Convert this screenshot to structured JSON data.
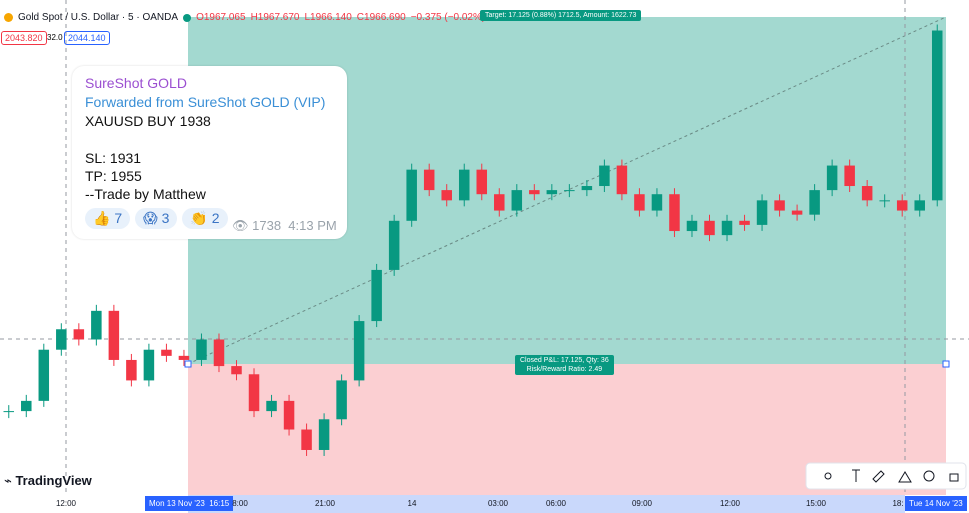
{
  "header": {
    "symbol": "Gold Spot / U.S. Dollar · 5 · OANDA",
    "open": "O1967.065",
    "high": "H1967.670",
    "low": "L1966.140",
    "close": "C1966.690",
    "change": "−0.375 (−0.02%)"
  },
  "quote": {
    "sell": "2043.820",
    "spread": "32.0",
    "buy": "2044.140"
  },
  "target_label": "Target: 17.125 (0.88%) 1712.5, Amount: 1622.73",
  "position_label": {
    "pnl": "Closed P&L: 17.125, Qty: 36",
    "ratio": "Risk/Reward Ratio: 2.49"
  },
  "message": {
    "channel": "SureShot GOLD",
    "forwarded": "Forwarded from SureShot GOLD (VIP)",
    "lines": [
      "XAUUSD BUY 1938",
      "SL: 1931",
      "TP: 1955",
      "--Trade by Matthew"
    ],
    "reactions": [
      {
        "emoji": "👍",
        "count": "7"
      },
      {
        "emoji": "😱",
        "count": "3"
      },
      {
        "emoji": "👏",
        "count": "2"
      }
    ],
    "views": "1738",
    "time": "4:13 PM"
  },
  "brand": "TradingView",
  "time_axis": [
    "12:00",
    "8:00",
    "21:00",
    "14",
    "03:00",
    "06:00",
    "09:00",
    "12:00",
    "15:00",
    "18:"
  ],
  "time_highlight": {
    "date_start": "Mon 13 Nov '23",
    "time_start": "16:15",
    "date_end": "Tue 14 Nov '23"
  },
  "chart_data": {
    "type": "candlestick",
    "ylim": [
      1931.6,
      1955.4
    ],
    "values": [
      1935.7,
      1936.2,
      1938.7,
      1939.7,
      1939.2,
      1940.6,
      1938.2,
      1937.2,
      1938.7,
      1938.4,
      1938.2,
      1939.2,
      1937.9,
      1937.5,
      1935.7,
      1936.2,
      1934.8,
      1933.8,
      1935.3,
      1937.2,
      1940.1,
      1942.6,
      1945.0,
      1947.5,
      1946.5,
      1946.0,
      1947.5,
      1946.3,
      1945.5,
      1946.5,
      1946.3,
      1946.5,
      1946.5,
      1946.7,
      1947.7,
      1946.3,
      1945.5,
      1946.3,
      1944.5,
      1945.0,
      1944.3,
      1945.0,
      1944.8,
      1946.0,
      1945.5,
      1945.3,
      1946.5,
      1947.7,
      1946.7,
      1946.0,
      1946.0,
      1945.5,
      1946.0,
      1954.3
    ]
  }
}
